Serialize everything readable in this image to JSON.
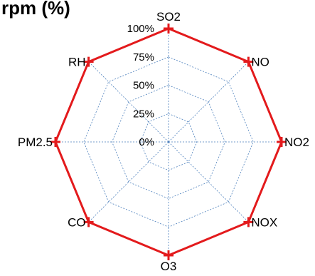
{
  "chart_data": {
    "type": "radar",
    "title_fragment": "rpm (%)",
    "axes": [
      "SO2",
      "NO",
      "NO2",
      "NOX",
      "O3",
      "CO",
      "PM2.5",
      "RH"
    ],
    "ticks": [
      "0%",
      "25%",
      "50%",
      "75%",
      "100%"
    ],
    "range": [
      0,
      100
    ],
    "grid": true,
    "series": [
      {
        "values": [
          100,
          100,
          100,
          100,
          100,
          100,
          100,
          100
        ],
        "color": "#e31a1c",
        "marker": "plus"
      }
    ],
    "grid_color": "#4a7ebb"
  }
}
